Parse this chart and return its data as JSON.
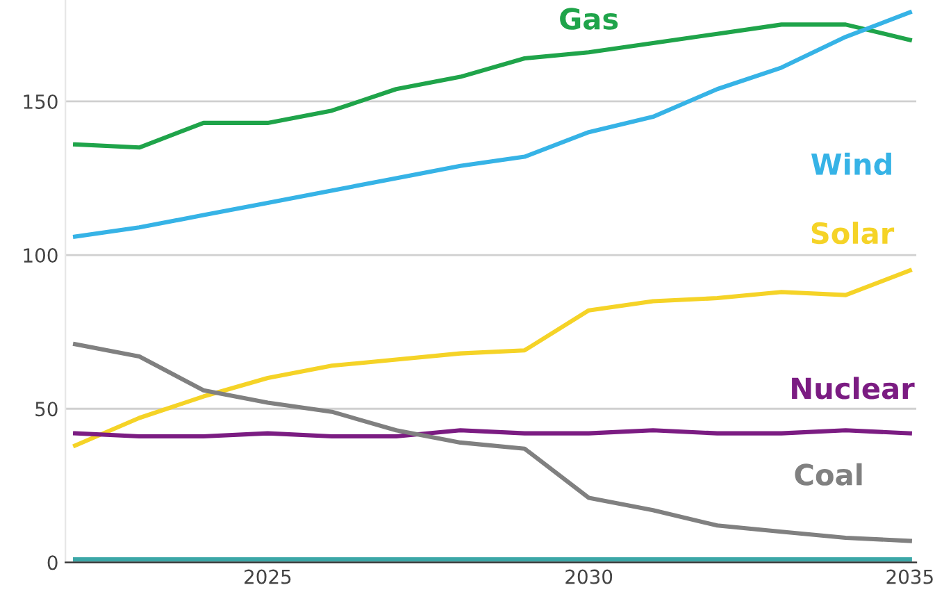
{
  "chart_data": {
    "type": "line",
    "x": [
      2022,
      2023,
      2024,
      2025,
      2026,
      2027,
      2028,
      2029,
      2030,
      2031,
      2032,
      2033,
      2034,
      2035
    ],
    "series": [
      {
        "name": "Gas",
        "color": "#1fa44a",
        "values": [
          136,
          135,
          143,
          143,
          147,
          154,
          158,
          164,
          166,
          169,
          172,
          175,
          175,
          170
        ]
      },
      {
        "name": "Wind",
        "color": "#36b3e6",
        "values": [
          106,
          109,
          113,
          117,
          121,
          125,
          129,
          132,
          140,
          145,
          154,
          161,
          171,
          179
        ]
      },
      {
        "name": "Solar",
        "color": "#f5d327",
        "values": [
          38,
          47,
          54,
          60,
          64,
          66,
          68,
          69,
          82,
          85,
          86,
          88,
          87,
          95
        ]
      },
      {
        "name": "Nuclear",
        "color": "#7b1c82",
        "values": [
          42,
          41,
          41,
          42,
          41,
          41,
          43,
          42,
          42,
          43,
          42,
          42,
          43,
          42
        ]
      },
      {
        "name": "Coal",
        "color": "#808080",
        "values": [
          71,
          67,
          56,
          52,
          49,
          43,
          39,
          37,
          21,
          17,
          12,
          10,
          8,
          7
        ]
      },
      {
        "color": "#3aa7a7",
        "values": [
          1,
          1,
          1,
          1,
          1,
          1,
          1,
          1,
          1,
          1,
          1,
          1,
          1,
          1
        ]
      }
    ],
    "xlim": [
      2021.85,
      2035.1
    ],
    "ylim": [
      0,
      183
    ],
    "xticks": [
      2025,
      2030,
      2035
    ],
    "yticks": [
      0,
      50,
      100,
      150
    ],
    "grid": "y",
    "legend": false,
    "marker": "none",
    "line_style": "solid"
  }
}
